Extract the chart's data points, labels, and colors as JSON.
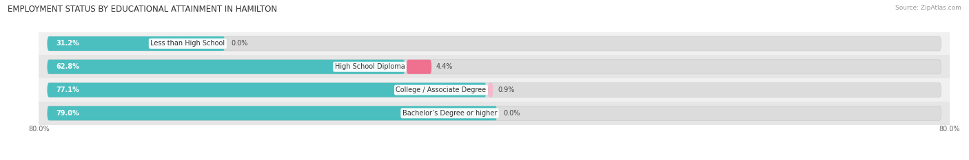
{
  "title": "EMPLOYMENT STATUS BY EDUCATIONAL ATTAINMENT IN HAMILTON",
  "source": "Source: ZipAtlas.com",
  "categories": [
    "Less than High School",
    "High School Diploma",
    "College / Associate Degree",
    "Bachelor’s Degree or higher"
  ],
  "labor_force_values": [
    31.2,
    62.8,
    77.1,
    79.0
  ],
  "unemployed_values": [
    0.0,
    4.4,
    0.9,
    0.0
  ],
  "labor_force_color": "#4BBFBF",
  "unemployed_color": "#F07090",
  "unemployed_light_color": "#F5B8CC",
  "row_bg_colors": [
    "#F0F0F0",
    "#E6E6E6",
    "#F0F0F0",
    "#E6E6E6"
  ],
  "bar_bg_color": "#DCDCDC",
  "xlim_left": -80.0,
  "xlim_right": 80.0,
  "title_fontsize": 8.5,
  "source_fontsize": 6.5,
  "label_fontsize": 7.0,
  "bar_height": 0.62,
  "figsize": [
    14.06,
    2.33
  ],
  "dpi": 100,
  "lf_label_color": "white",
  "val_label_color": "#444444",
  "cat_label_color": "#333333"
}
